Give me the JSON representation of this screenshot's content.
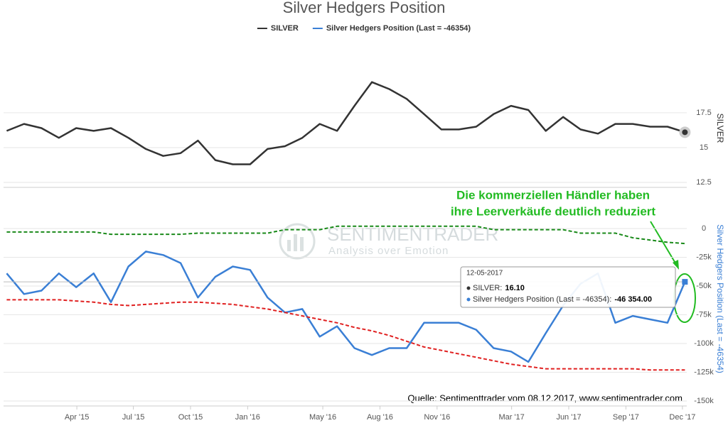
{
  "chart_data": {
    "type": "line",
    "title": "Silver Hedgers Position",
    "grid": true,
    "x": [
      "2014-12-09",
      "2015-01-06",
      "2015-02-03",
      "2015-03-03",
      "2015-03-31",
      "2015-04-28",
      "2015-05-26",
      "2015-06-23",
      "2015-07-21",
      "2015-08-18",
      "2015-09-15",
      "2015-10-13",
      "2015-11-10",
      "2015-12-08",
      "2016-01-05",
      "2016-02-02",
      "2016-03-01",
      "2016-03-29",
      "2016-04-26",
      "2016-05-24",
      "2016-06-21",
      "2016-07-19",
      "2016-08-16",
      "2016-09-13",
      "2016-10-11",
      "2016-11-08",
      "2016-12-06",
      "2017-01-03",
      "2017-01-31",
      "2017-02-28",
      "2017-03-28",
      "2017-04-25",
      "2017-05-23",
      "2017-06-20",
      "2017-07-18",
      "2017-08-15",
      "2017-09-12",
      "2017-10-10",
      "2017-11-07",
      "2017-12-05"
    ],
    "xlim": [
      "2014-12-04",
      "2017-12-08"
    ],
    "xticks": [
      {
        "value": "2015-04-01",
        "label": "Apr '15"
      },
      {
        "value": "2015-07-01",
        "label": "Jul '15"
      },
      {
        "value": "2015-10-01",
        "label": "Oct '15"
      },
      {
        "value": "2016-01-01",
        "label": "Jan '16"
      },
      {
        "value": "2016-05-01",
        "label": "May '16"
      },
      {
        "value": "2016-08-01",
        "label": "Aug '16"
      },
      {
        "value": "2016-11-01",
        "label": "Nov '16"
      },
      {
        "value": "2017-03-01",
        "label": "Mar '17"
      },
      {
        "value": "2017-06-01",
        "label": "Jun '17"
      },
      {
        "value": "2017-09-01",
        "label": "Sep '17"
      },
      {
        "value": "2017-12-01",
        "label": "Dec '17"
      }
    ],
    "panels": [
      {
        "ylabel": "SILVER",
        "ylim": [
          12.5,
          20.5
        ],
        "yticks": [
          12.5,
          15,
          17.5
        ],
        "series": [
          {
            "name": "SILVER",
            "color": "#333333",
            "values": [
              16.2,
              16.7,
              16.4,
              15.7,
              16.4,
              16.2,
              16.4,
              15.7,
              14.9,
              14.4,
              14.6,
              15.5,
              14.1,
              13.8,
              13.8,
              14.9,
              15.1,
              15.7,
              16.7,
              16.2,
              18.0,
              19.7,
              19.2,
              18.5,
              17.4,
              16.3,
              16.3,
              16.5,
              17.4,
              18.0,
              17.7,
              16.2,
              17.2,
              16.3,
              16.0,
              16.7,
              16.7,
              16.5,
              16.5,
              16.1
            ]
          }
        ]
      },
      {
        "ylabel": "Silver Hedgers Position (Last = -46354)",
        "ylim": [
          -150000,
          25000
        ],
        "yticks": [
          {
            "value": 0,
            "label": "0"
          },
          {
            "value": -25000,
            "label": "-25k"
          },
          {
            "value": -50000,
            "label": "-50k"
          },
          {
            "value": -75000,
            "label": "-75k"
          },
          {
            "value": -100000,
            "label": "-100k"
          },
          {
            "value": -125000,
            "label": "-125k"
          },
          {
            "value": -150000,
            "label": "-150k"
          }
        ],
        "series": [
          {
            "name": "Silver Hedgers Position (Last = -46354)",
            "color": "#3a7fd5",
            "values": [
              -39000,
              -57000,
              -54000,
              -39000,
              -51000,
              -39000,
              -64000,
              -33000,
              -20000,
              -23000,
              -30000,
              -60000,
              -42000,
              -33000,
              -36000,
              -60000,
              -73000,
              -70000,
              -94000,
              -85000,
              -104000,
              -110000,
              -104000,
              -104000,
              -82000,
              -82000,
              -82000,
              -88000,
              -104000,
              -107000,
              -116000,
              -91000,
              -67000,
              -48000,
              -39000,
              -82000,
              -76000,
              -79000,
              -82000,
              -46354
            ]
          },
          {
            "color": "#1a8a1a",
            "dashed": true,
            "values": [
              -3000,
              -3000,
              -3000,
              -3000,
              -3000,
              -3000,
              -5000,
              -5000,
              -5000,
              -5000,
              -5000,
              -4000,
              -4000,
              -4000,
              -4000,
              -4000,
              -1000,
              -1000,
              -1000,
              2000,
              2000,
              2000,
              2000,
              2000,
              2000,
              2000,
              2000,
              2000,
              -1000,
              -1000,
              -1000,
              -1000,
              -1000,
              -4000,
              -4000,
              -4000,
              -8000,
              -10000,
              -12000,
              -13000
            ]
          },
          {
            "color": "#e02020",
            "dashed": true,
            "values": [
              -62000,
              -62000,
              -62000,
              -62000,
              -63000,
              -64000,
              -66000,
              -67000,
              -66000,
              -65000,
              -64000,
              -64000,
              -65000,
              -66000,
              -68000,
              -70000,
              -73000,
              -76000,
              -79000,
              -82000,
              -86000,
              -89000,
              -93000,
              -98000,
              -103000,
              -106000,
              -109000,
              -112000,
              -115000,
              -118000,
              -120000,
              -122000,
              -122000,
              -122000,
              -122000,
              -122000,
              -122000,
              -123000,
              -123000,
              -123000
            ]
          }
        ]
      }
    ],
    "annotation": [
      "Die kommerziellen Händler haben",
      "ihre Leerverkäufe deutlich reduziert"
    ],
    "source": "Quelle: Sentimenttrader vom 08.12.2017, www.sentimentrader.com",
    "watermark": {
      "title": "SENTIMENTRADER",
      "subtitle": "Analysis over Emotion"
    },
    "tooltip": {
      "date": "12-05-2017",
      "items": [
        {
          "label": "SILVER:",
          "value": 16.1,
          "value_label": "16.10"
        },
        {
          "label": "Silver Hedgers Position (Last = -46354):",
          "value": -46354,
          "value_label": "-46 354.00"
        }
      ]
    }
  }
}
